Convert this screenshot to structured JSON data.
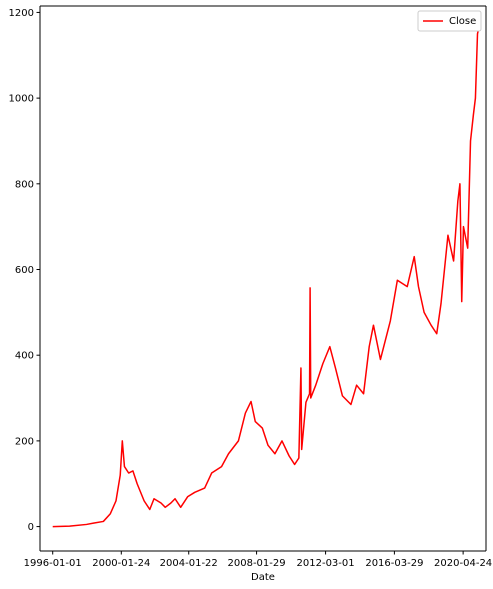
{
  "chart_data": {
    "type": "line",
    "title": "",
    "xlabel": "Date",
    "ylabel": "",
    "x_ticks": [
      "1996-01-01",
      "2000-01-24",
      "2004-01-22",
      "2008-01-29",
      "2012-03-01",
      "2016-03-29",
      "2020-04-24"
    ],
    "y_ticks": [
      0,
      200,
      400,
      600,
      800,
      1000,
      1200
    ],
    "xlim": [
      "1995-04-01",
      "2021-09-01"
    ],
    "ylim": [
      -57,
      1215
    ],
    "grid": false,
    "legend": {
      "position": "top-right",
      "entries": [
        "Close"
      ]
    },
    "series": [
      {
        "name": "Close",
        "color": "#ff0000",
        "points": [
          [
            "1996-01-01",
            0
          ],
          [
            "1997-01-01",
            1
          ],
          [
            "1998-01-01",
            5
          ],
          [
            "1998-06-01",
            8
          ],
          [
            "1999-01-01",
            12
          ],
          [
            "1999-06-01",
            30
          ],
          [
            "1999-10-01",
            60
          ],
          [
            "2000-01-01",
            120
          ],
          [
            "2000-02-15",
            200
          ],
          [
            "2000-04-01",
            140
          ],
          [
            "2000-07-01",
            125
          ],
          [
            "2000-10-01",
            130
          ],
          [
            "2001-01-01",
            100
          ],
          [
            "2001-06-01",
            60
          ],
          [
            "2001-10-01",
            40
          ],
          [
            "2002-01-01",
            65
          ],
          [
            "2002-06-01",
            55
          ],
          [
            "2002-09-01",
            45
          ],
          [
            "2003-01-01",
            55
          ],
          [
            "2003-04-01",
            65
          ],
          [
            "2003-08-01",
            45
          ],
          [
            "2004-01-01",
            70
          ],
          [
            "2004-06-01",
            80
          ],
          [
            "2005-01-01",
            90
          ],
          [
            "2005-06-01",
            125
          ],
          [
            "2006-01-01",
            140
          ],
          [
            "2006-06-01",
            170
          ],
          [
            "2007-01-01",
            200
          ],
          [
            "2007-06-01",
            265
          ],
          [
            "2007-10-01",
            292
          ],
          [
            "2008-01-01",
            245
          ],
          [
            "2008-06-01",
            230
          ],
          [
            "2008-10-01",
            190
          ],
          [
            "2009-03-01",
            170
          ],
          [
            "2009-08-01",
            200
          ],
          [
            "2010-01-01",
            165
          ],
          [
            "2010-05-01",
            145
          ],
          [
            "2010-08-01",
            160
          ],
          [
            "2010-09-15",
            370
          ],
          [
            "2010-10-01",
            180
          ],
          [
            "2011-01-01",
            290
          ],
          [
            "2011-03-20",
            310
          ],
          [
            "2011-04-01",
            557
          ],
          [
            "2011-04-15",
            300
          ],
          [
            "2011-08-01",
            330
          ],
          [
            "2012-01-01",
            380
          ],
          [
            "2012-06-01",
            420
          ],
          [
            "2012-10-01",
            370
          ],
          [
            "2013-03-01",
            305
          ],
          [
            "2013-09-01",
            285
          ],
          [
            "2014-01-01",
            330
          ],
          [
            "2014-06-01",
            310
          ],
          [
            "2014-10-01",
            420
          ],
          [
            "2015-01-01",
            470
          ],
          [
            "2015-06-01",
            390
          ],
          [
            "2016-01-01",
            480
          ],
          [
            "2016-06-01",
            575
          ],
          [
            "2017-01-01",
            560
          ],
          [
            "2017-06-01",
            630
          ],
          [
            "2017-09-01",
            560
          ],
          [
            "2018-01-01",
            500
          ],
          [
            "2018-06-01",
            470
          ],
          [
            "2018-10-01",
            450
          ],
          [
            "2019-01-01",
            520
          ],
          [
            "2019-06-01",
            680
          ],
          [
            "2019-10-01",
            620
          ],
          [
            "2020-01-01",
            760
          ],
          [
            "2020-02-15",
            800
          ],
          [
            "2020-03-25",
            525
          ],
          [
            "2020-05-01",
            700
          ],
          [
            "2020-08-01",
            650
          ],
          [
            "2020-10-01",
            900
          ],
          [
            "2020-12-01",
            960
          ],
          [
            "2021-01-15",
            1000
          ],
          [
            "2021-03-01",
            1150
          ],
          [
            "2021-04-01",
            1165
          ]
        ]
      }
    ]
  }
}
